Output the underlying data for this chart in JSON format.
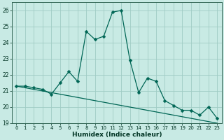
{
  "xlabel": "Humidex (Indice chaleur)",
  "background_color": "#c8eae4",
  "grid_color": "#a0ccc4",
  "line_color": "#006655",
  "x_values": [
    0,
    1,
    2,
    3,
    4,
    5,
    6,
    7,
    8,
    9,
    10,
    11,
    12,
    13,
    14,
    15,
    16,
    17,
    18,
    19,
    20,
    21,
    22,
    23
  ],
  "y_curve": [
    21.3,
    21.3,
    21.2,
    21.1,
    20.8,
    21.5,
    22.2,
    21.6,
    24.7,
    24.2,
    24.4,
    25.9,
    26.0,
    22.9,
    20.9,
    21.8,
    21.6,
    20.4,
    20.1,
    19.8,
    19.8,
    19.5,
    20.0,
    19.3
  ],
  "y_linear": [
    21.3,
    21.2,
    21.1,
    21.0,
    20.9,
    20.8,
    20.7,
    20.6,
    20.5,
    20.4,
    20.3,
    20.2,
    20.1,
    20.0,
    19.9,
    19.8,
    19.7,
    19.6,
    19.5,
    19.4,
    19.3,
    19.2,
    19.1,
    19.0
  ],
  "ylim": [
    19.0,
    26.5
  ],
  "yticks": [
    19,
    20,
    21,
    22,
    23,
    24,
    25,
    26
  ],
  "xlim": [
    -0.5,
    23.5
  ],
  "xticks": [
    0,
    1,
    2,
    3,
    4,
    5,
    6,
    7,
    8,
    9,
    10,
    11,
    12,
    13,
    14,
    15,
    16,
    17,
    18,
    19,
    20,
    21,
    22,
    23
  ]
}
